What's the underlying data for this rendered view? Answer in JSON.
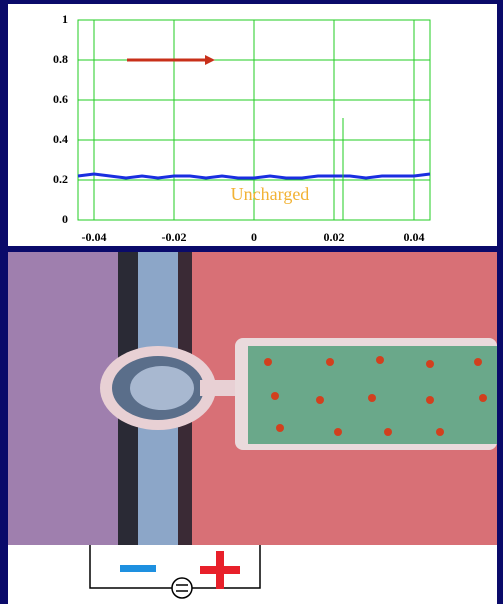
{
  "chart_data": {
    "type": "line",
    "annotation": "Uncharged",
    "x": [
      -0.044,
      -0.04,
      -0.036,
      -0.032,
      -0.028,
      -0.024,
      -0.02,
      -0.016,
      -0.012,
      -0.008,
      -0.004,
      0,
      0.004,
      0.008,
      0.012,
      0.016,
      0.02,
      0.024,
      0.028,
      0.032,
      0.036,
      0.04,
      0.044
    ],
    "series": [
      {
        "color": "#1a2ee0",
        "values": [
          0.22,
          0.23,
          0.22,
          0.21,
          0.22,
          0.21,
          0.22,
          0.22,
          0.21,
          0.22,
          0.21,
          0.21,
          0.22,
          0.21,
          0.21,
          0.22,
          0.22,
          0.22,
          0.21,
          0.22,
          0.22,
          0.22,
          0.23
        ]
      }
    ],
    "xlim": [
      -0.044,
      0.044
    ],
    "ylim": [
      0,
      1
    ],
    "xticks": [
      -0.04,
      -0.02,
      0,
      0.02,
      0.04
    ],
    "yticks": [
      0,
      0.2,
      0.4,
      0.6,
      0.8,
      1
    ],
    "grid": true,
    "grid_color": "#22cc22"
  }
}
